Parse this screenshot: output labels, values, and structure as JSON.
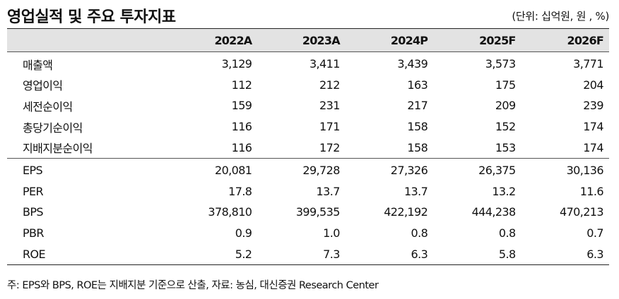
{
  "title": "영업실적 및 주요 투자지표",
  "unit": "(단위: 십억원, 원 , %)",
  "columns": [
    "2022A",
    "2023A",
    "2024P",
    "2025F",
    "2026F"
  ],
  "rows_income": [
    {
      "label": "매출액",
      "values": [
        "3,129",
        "3,411",
        "3,439",
        "3,573",
        "3,771"
      ]
    },
    {
      "label": "영업이익",
      "values": [
        "112",
        "212",
        "163",
        "175",
        "204"
      ]
    },
    {
      "label": "세전순이익",
      "values": [
        "159",
        "231",
        "217",
        "209",
        "239"
      ]
    },
    {
      "label": "총당기순이익",
      "values": [
        "116",
        "171",
        "158",
        "152",
        "174"
      ]
    },
    {
      "label": "지배지분순이익",
      "values": [
        "116",
        "172",
        "158",
        "153",
        "174"
      ]
    }
  ],
  "rows_valuation": [
    {
      "label": "EPS",
      "values": [
        "20,081",
        "29,728",
        "27,326",
        "26,375",
        "30,136"
      ]
    },
    {
      "label": "PER",
      "values": [
        "17.8",
        "13.7",
        "13.7",
        "13.2",
        "11.6"
      ]
    },
    {
      "label": "BPS",
      "values": [
        "378,810",
        "399,535",
        "422,192",
        "444,238",
        "470,213"
      ]
    },
    {
      "label": "PBR",
      "values": [
        "0.9",
        "1.0",
        "0.8",
        "0.8",
        "0.7"
      ]
    },
    {
      "label": "ROE",
      "values": [
        "5.2",
        "7.3",
        "6.3",
        "5.8",
        "6.3"
      ]
    }
  ],
  "footnote": "주: EPS와 BPS, ROE는 지배지분 기준으로 산출, 자료: 농심, 대신증권 Research Center"
}
